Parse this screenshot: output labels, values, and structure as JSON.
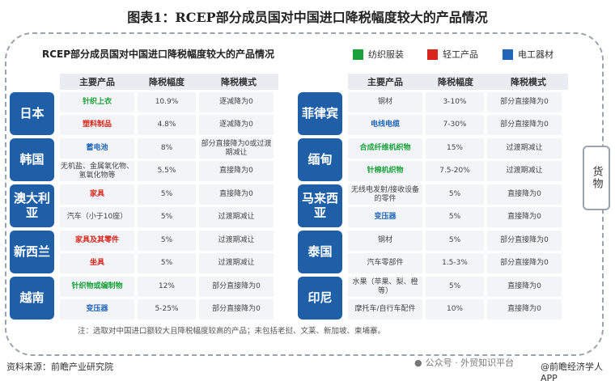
{
  "figure_title": "图表1：RCEP部分成员国对中国进口降税幅度较大的产品情况",
  "sub_title": "RCEP部分成员国对中国进口降税幅度较大的产品情况",
  "legend": [
    {
      "label": "纺织服装",
      "color": "#1aa13b"
    },
    {
      "label": "轻工产品",
      "color": "#d9261c"
    },
    {
      "label": "电工器材",
      "color": "#2166b8"
    }
  ],
  "side_tab": "货物",
  "headers": {
    "product": "主要产品",
    "rate": "降税幅度",
    "mode": "降税模式"
  },
  "left": [
    {
      "country": "日本",
      "rows": [
        {
          "product": "针织上衣",
          "rate": "10.9%",
          "mode": "逐减降为0",
          "category": "green"
        },
        {
          "product": "塑料制品",
          "rate": "4.8%",
          "mode": "逐减降为0",
          "category": "red"
        }
      ]
    },
    {
      "country": "韩国",
      "rows": [
        {
          "product": "蓄电池",
          "rate": "8%",
          "mode": "部分直接降为0或过渡期减让",
          "category": "blue"
        },
        {
          "product": "无机盐、金属氧化物、氢氧化物等",
          "rate": "5.5%",
          "mode": "直接降为0",
          "category": "none"
        }
      ]
    },
    {
      "country": "澳大利亚",
      "rows": [
        {
          "product": "家具",
          "rate": "5%",
          "mode": "直接降为0",
          "category": "red"
        },
        {
          "product": "汽车（小于10座）",
          "rate": "5%",
          "mode": "过渡期减让",
          "category": "none"
        }
      ]
    },
    {
      "country": "新西兰",
      "rows": [
        {
          "product": "家具及其零件",
          "rate": "5%",
          "mode": "过渡期减让",
          "category": "red"
        },
        {
          "product": "坐具",
          "rate": "5%",
          "mode": "过渡期减让",
          "category": "red"
        }
      ]
    },
    {
      "country": "越南",
      "rows": [
        {
          "product": "针织物或编制物",
          "rate": "12%",
          "mode": "部分直接降为0",
          "category": "green"
        },
        {
          "product": "变压器",
          "rate": "5-25%",
          "mode": "部分直接降为0",
          "category": "blue"
        }
      ]
    }
  ],
  "right": [
    {
      "country": "菲律宾",
      "rows": [
        {
          "product": "钢材",
          "rate": "3-10%",
          "mode": "部分直接降为0",
          "category": "none"
        },
        {
          "product": "电线电缆",
          "rate": "7-30%",
          "mode": "部分直接降为0",
          "category": "blue"
        }
      ]
    },
    {
      "country": "缅甸",
      "rows": [
        {
          "product": "合成纤维机织物",
          "rate": "15%",
          "mode": "过渡期减让",
          "category": "green"
        },
        {
          "product": "针棉机织物",
          "rate": "7.5-20%",
          "mode": "过渡期减让",
          "category": "green"
        }
      ]
    },
    {
      "country": "马来西亚",
      "rows": [
        {
          "product": "无线电发射/接收设备的零件",
          "rate": "5%",
          "mode": "直接降为0",
          "category": "none"
        },
        {
          "product": "变压器",
          "rate": "5%",
          "mode": "直接降为0",
          "category": "blue"
        }
      ]
    },
    {
      "country": "泰国",
      "rows": [
        {
          "product": "钢材",
          "rate": "5%",
          "mode": "部分直接降为0",
          "category": "none"
        },
        {
          "product": "汽车零部件",
          "rate": "1.5-3%",
          "mode": "部分直接降为0",
          "category": "none"
        }
      ]
    },
    {
      "country": "印尼",
      "rows": [
        {
          "product": "水果（苹果、梨、橙等）",
          "rate": "5%",
          "mode": "直接降为0",
          "category": "none"
        },
        {
          "product": "摩托车/自行车配件",
          "rate": "10%",
          "mode": "直接降为0",
          "category": "none"
        }
      ]
    }
  ],
  "note": "注：选取对中国进口额较大且降税幅度较高的产品；未包括老挝、文莱、新加坡、柬埔寨。",
  "source": "资料来源：前瞻产业研究院",
  "watermark_wechat": "公众号 · 外贸知识平台",
  "watermark_app": "@前瞻经济学人APP"
}
